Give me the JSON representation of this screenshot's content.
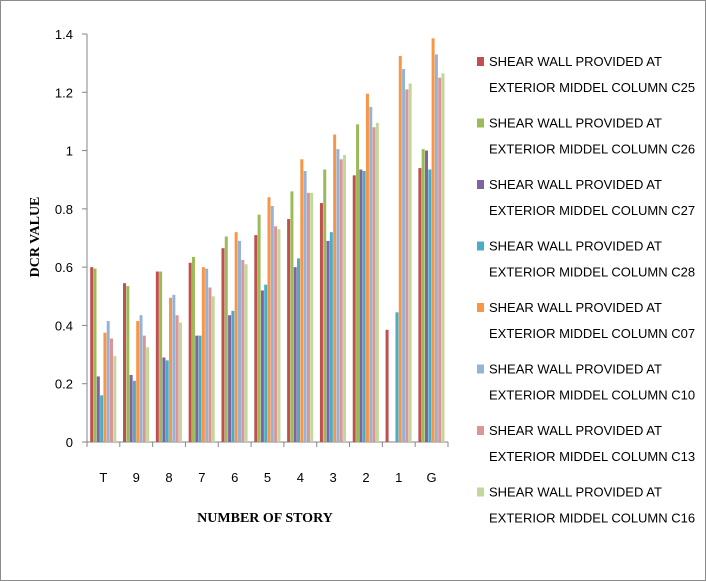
{
  "chart_data": {
    "type": "bar",
    "title": "",
    "xlabel": "NUMBER OF STORY",
    "ylabel": "DCR VALUE",
    "ylim": [
      0,
      1.4
    ],
    "yticks": [
      0,
      0.2,
      0.4,
      0.6,
      0.8,
      1,
      1.2,
      1.4
    ],
    "ytick_labels": [
      "0",
      "0.2",
      "0.4",
      "0.6",
      "0.8",
      "1",
      "1.2",
      "1.4"
    ],
    "grid": false,
    "legend_position": "right",
    "categories": [
      "T",
      "9",
      "8",
      "7",
      "6",
      "5",
      "4",
      "3",
      "2",
      "1",
      "G"
    ],
    "series": [
      {
        "name": "SHEAR WALL PROVIDED AT EXTERIOR MIDDEL COLUMN  C25",
        "legend_lines": [
          "SHEAR WALL PROVIDED AT",
          "EXTERIOR MIDDEL COLUMN  C25"
        ],
        "color": "#C0504D",
        "values": [
          0.6,
          0.545,
          0.585,
          0.615,
          0.665,
          0.71,
          0.765,
          0.82,
          0.915,
          0.385,
          0.94
        ]
      },
      {
        "name": "SHEAR WALL PROVIDED AT EXTERIOR MIDDEL COLUMN  C26",
        "legend_lines": [
          "SHEAR WALL PROVIDED AT",
          "EXTERIOR MIDDEL COLUMN  C26"
        ],
        "color": "#9BBB59",
        "values": [
          0.595,
          0.535,
          0.585,
          0.635,
          0.705,
          0.78,
          0.86,
          0.935,
          1.09,
          0,
          1.005
        ]
      },
      {
        "name": "SHEAR WALL PROVIDED AT EXTERIOR MIDDEL COLUMN  C27",
        "legend_lines": [
          "SHEAR WALL PROVIDED AT",
          "EXTERIOR MIDDEL COLUMN  C27"
        ],
        "color": "#8064A2",
        "values": [
          0.225,
          0.23,
          0.29,
          0.365,
          0.435,
          0.52,
          0.6,
          0.69,
          0.935,
          0,
          1.0
        ]
      },
      {
        "name": "SHEAR WALL PROVIDED AT EXTERIOR MIDDEL COLUMN  C28",
        "legend_lines": [
          "SHEAR WALL PROVIDED AT",
          "EXTERIOR MIDDEL COLUMN  C28"
        ],
        "color": "#4BACC6",
        "values": [
          0.16,
          0.21,
          0.28,
          0.365,
          0.45,
          0.54,
          0.63,
          0.72,
          0.93,
          0.445,
          0.935
        ]
      },
      {
        "name": "SHEAR WALL PROVIDED AT EXTERIOR MIDDEL COLUMN  C07",
        "legend_lines": [
          "SHEAR WALL PROVIDED AT",
          "EXTERIOR MIDDEL COLUMN  C07"
        ],
        "color": "#F79646",
        "values": [
          0.375,
          0.415,
          0.495,
          0.6,
          0.72,
          0.84,
          0.97,
          1.055,
          1.195,
          1.325,
          1.385
        ]
      },
      {
        "name": "SHEAR WALL PROVIDED AT EXTERIOR MIDDEL COLUMN  C10",
        "legend_lines": [
          "SHEAR WALL PROVIDED AT",
          "EXTERIOR MIDDEL COLUMN  C10"
        ],
        "color": "#95B3D7",
        "values": [
          0.415,
          0.435,
          0.505,
          0.595,
          0.69,
          0.81,
          0.93,
          1.005,
          1.15,
          1.28,
          1.33
        ]
      },
      {
        "name": "SHEAR WALL PROVIDED AT EXTERIOR MIDDEL COLUMN  C13",
        "legend_lines": [
          "SHEAR WALL PROVIDED AT",
          "EXTERIOR MIDDEL COLUMN  C13"
        ],
        "color": "#D99694",
        "values": [
          0.355,
          0.365,
          0.435,
          0.53,
          0.625,
          0.74,
          0.855,
          0.97,
          1.08,
          1.21,
          1.25
        ]
      },
      {
        "name": "SHEAR WALL PROVIDED AT EXTERIOR MIDDEL COLUMN  C16",
        "legend_lines": [
          "SHEAR WALL PROVIDED AT",
          "EXTERIOR MIDDEL COLUMN  C16"
        ],
        "color": "#C3D69B",
        "values": [
          0.295,
          0.325,
          0.41,
          0.5,
          0.61,
          0.73,
          0.855,
          0.985,
          1.095,
          1.23,
          1.265
        ]
      }
    ]
  }
}
